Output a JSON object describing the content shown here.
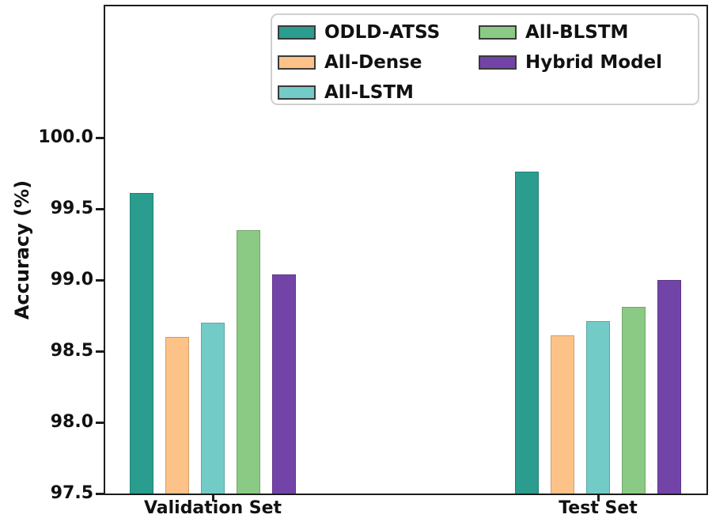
{
  "figure": {
    "background": "#ffffff",
    "axis_color": "#1c1c1c",
    "text_color": "#111111"
  },
  "chart_data": {
    "type": "bar",
    "title": "",
    "categories": [
      "Validation Set",
      "Test Set"
    ],
    "series": [
      {
        "name": "ODLD-ATSS",
        "color": "#2a9d8f",
        "values": [
          99.61,
          99.76
        ]
      },
      {
        "name": "All-Dense",
        "color": "#fdc287",
        "values": [
          98.6,
          98.61
        ]
      },
      {
        "name": "All-LSTM",
        "color": "#72cbc6",
        "values": [
          98.7,
          98.71
        ]
      },
      {
        "name": "All-BLSTM",
        "color": "#8bca84",
        "values": [
          99.35,
          98.81
        ]
      },
      {
        "name": "Hybrid Model",
        "color": "#7344a8",
        "values": [
          99.04,
          99.0
        ]
      }
    ],
    "xlabel": "",
    "ylabel": "Accuracy (%)",
    "ylim": [
      97.5,
      100.92
    ],
    "yticks": [
      97.5,
      98.0,
      98.5,
      99.0,
      99.5,
      100.0
    ],
    "ytick_labels": [
      "97.5",
      "98.0",
      "98.5",
      "99.0",
      "99.5",
      "100.0"
    ],
    "grid": false,
    "legend": {
      "position": "upper center",
      "columns": 2
    }
  }
}
